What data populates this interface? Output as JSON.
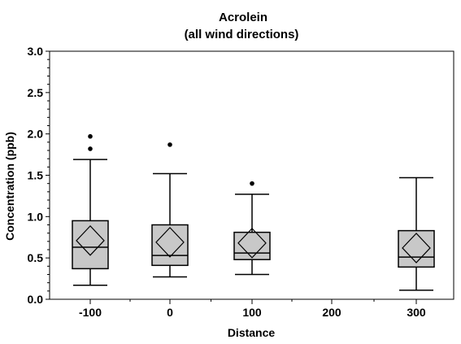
{
  "chart_data": {
    "type": "box",
    "title": "Acrolein",
    "subtitle": "(all wind directions)",
    "xlabel": "Distance",
    "ylabel": "Concentration (ppb)",
    "ylim": [
      0,
      3.0
    ],
    "yticks": [
      "0.0",
      "0.5",
      "1.0",
      "1.5",
      "2.0",
      "2.5",
      "3.0"
    ],
    "y_minor_step": 0.1,
    "categories": [
      "-100",
      "0",
      "100",
      "200",
      "300"
    ],
    "grid": false,
    "colors": {
      "box_fill": "#c8c8c8",
      "stroke": "#000000"
    },
    "boxes": [
      {
        "category": "-100",
        "whisker_low": 0.17,
        "q1": 0.37,
        "median": 0.63,
        "q3": 0.95,
        "whisker_high": 1.69,
        "mean": 0.71,
        "outliers": [
          1.82,
          1.97
        ]
      },
      {
        "category": "0",
        "whisker_low": 0.27,
        "q1": 0.41,
        "median": 0.53,
        "q3": 0.9,
        "whisker_high": 1.52,
        "mean": 0.69,
        "outliers": [
          1.87
        ]
      },
      {
        "category": "100",
        "whisker_low": 0.3,
        "q1": 0.48,
        "median": 0.56,
        "q3": 0.81,
        "whisker_high": 1.27,
        "mean": 0.68,
        "outliers": [
          1.4
        ]
      },
      {
        "category": "300",
        "whisker_low": 0.11,
        "q1": 0.39,
        "median": 0.51,
        "q3": 0.83,
        "whisker_high": 1.47,
        "mean": 0.62,
        "outliers": []
      }
    ]
  }
}
